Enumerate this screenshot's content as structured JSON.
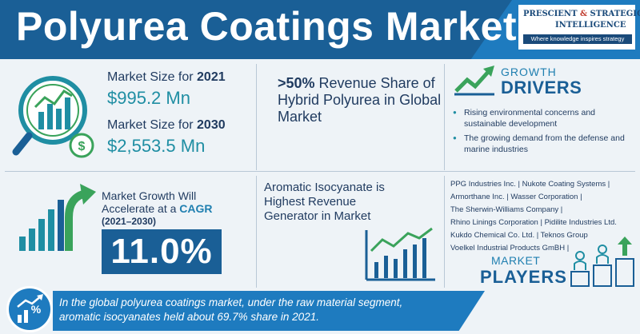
{
  "header": {
    "title": "Polyurea Coatings Market",
    "logo_line1": "PRESCIENT",
    "logo_amp": "&",
    "logo_line1b": "STRATEGIC",
    "logo_line2": "INTELLIGENCE",
    "logo_tagline": "Where knowledge inspires strategy"
  },
  "market_size": {
    "label_2021_prefix": "Market Size for ",
    "year_2021": "2021",
    "value_2021": "$995.2 Mn",
    "label_2030_prefix": "Market Size for ",
    "year_2030": "2030",
    "value_2030": "$2,553.5 Mn"
  },
  "share": {
    "highlight": ">50%",
    "text": " Revenue Share of Hybrid Polyurea in Global Market"
  },
  "drivers": {
    "growth_label": "GROWTH",
    "title": "DRIVERS",
    "items": [
      "Rising environmental concerns and sustainable development",
      "The growing demand from the defense and marine industries"
    ]
  },
  "cagr": {
    "line1": "Market Growth Will",
    "line2_prefix": "Accelerate at a ",
    "line2_highlight": "CAGR",
    "years": "(2021–2030)",
    "value": "11.0%"
  },
  "aromatic": {
    "text": "Aromatic Isocyanate is Highest Revenue Generator in Market"
  },
  "players": {
    "lines": [
      "PPG Industries Inc. | Nukote Coating Systems |",
      "Armorthane Inc. | Wasser Corporation |",
      "The Sherwin-Williams Company |",
      "Rhino Linings Corporation | Pidilite Industries Ltd.",
      "Kukdo Chemical Co. Ltd. | Teknos Group",
      "Voelkel Industrial Products GmBH |"
    ],
    "market_label": "MARKET",
    "title": "PLAYERS"
  },
  "footer": {
    "text": "In the global polyurea coatings market, under the raw material segment, aromatic isocyanates held about 69.7% share in 2021."
  },
  "colors": {
    "primary_dark": "#1a5f96",
    "primary": "#1e7bbf",
    "teal": "#1f8ea3",
    "green": "#3aa35b",
    "text": "#1f3a5f"
  }
}
